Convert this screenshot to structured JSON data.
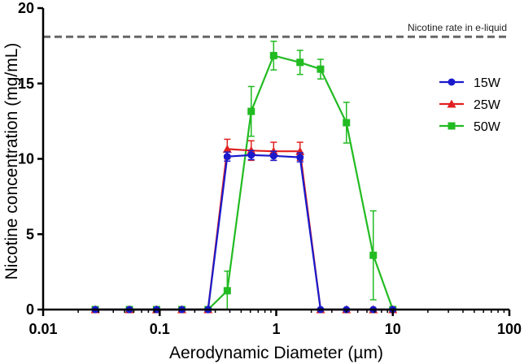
{
  "chart_data": {
    "type": "line",
    "xscale": "log",
    "xlabel": "Aerodynamic Diameter (µm)",
    "ylabel": "Nicotine concentration (mg/mL)",
    "xlim": [
      0.01,
      100
    ],
    "ylim": [
      0,
      20
    ],
    "xticks": [
      0.01,
      0.1,
      1,
      10,
      100
    ],
    "xtick_labels": [
      "0.01",
      "0.1",
      "1",
      "10",
      "100"
    ],
    "yticks": [
      0,
      5,
      10,
      15,
      20
    ],
    "ytick_labels": [
      "0",
      "5",
      "10",
      "15",
      "20"
    ],
    "grid": false,
    "legend_position": "right",
    "reference_line": {
      "y": 18.1,
      "label": "Nicotine rate in e-liquid",
      "color": "#666666"
    },
    "series": [
      {
        "name": "50W",
        "color": "#22bb22",
        "marker": "square",
        "x": [
          0.028,
          0.055,
          0.094,
          0.155,
          0.26,
          0.38,
          0.61,
          0.95,
          1.6,
          2.4,
          4.0,
          6.8,
          10.0
        ],
        "y": [
          0,
          0,
          0,
          0,
          0,
          1.25,
          13.15,
          16.85,
          16.4,
          15.95,
          12.4,
          3.6,
          0
        ],
        "err": [
          0,
          0,
          0,
          0,
          0,
          1.3,
          1.65,
          0.95,
          0.8,
          0.65,
          1.35,
          2.95,
          0
        ]
      },
      {
        "name": "25W",
        "color": "#e02020",
        "marker": "triangle",
        "x": [
          0.028,
          0.055,
          0.094,
          0.155,
          0.26,
          0.38,
          0.61,
          0.95,
          1.6,
          2.4,
          4.0,
          6.8,
          10.0
        ],
        "y": [
          0,
          0,
          0,
          0,
          0,
          10.65,
          10.55,
          10.5,
          10.5,
          0,
          0,
          0,
          0
        ],
        "err": [
          0,
          0,
          0,
          0,
          0,
          0.65,
          0.65,
          0.6,
          0.6,
          0,
          0,
          0,
          0
        ]
      },
      {
        "name": "15W",
        "color": "#1a1acc",
        "marker": "circle",
        "x": [
          0.028,
          0.055,
          0.094,
          0.155,
          0.26,
          0.38,
          0.61,
          0.95,
          1.6,
          2.4,
          4.0,
          6.8,
          10.0
        ],
        "y": [
          0,
          0,
          0,
          0,
          0,
          10.15,
          10.25,
          10.2,
          10.1,
          0,
          0,
          0,
          0
        ],
        "err": [
          0,
          0,
          0,
          0,
          0,
          0.3,
          0.3,
          0.3,
          0.3,
          0,
          0,
          0,
          0
        ]
      }
    ],
    "legend_order": [
      "15W",
      "25W",
      "50W"
    ]
  }
}
